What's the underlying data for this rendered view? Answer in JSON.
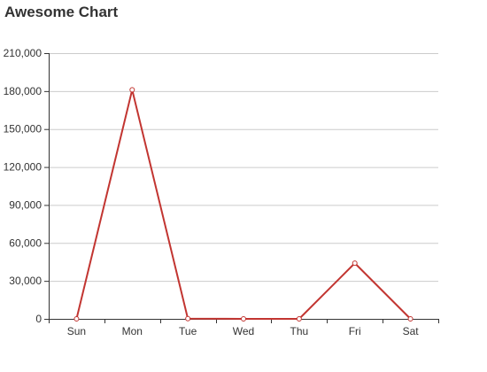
{
  "chart_data": {
    "type": "line",
    "title": "Awesome Chart",
    "categories": [
      "Sun",
      "Mon",
      "Tue",
      "Wed",
      "Thu",
      "Fri",
      "Sat"
    ],
    "series": [
      {
        "values": [
          0,
          181000,
          200,
          0,
          0,
          44000,
          0
        ]
      }
    ],
    "ylim": [
      0,
      210000
    ],
    "yticks": [
      0,
      30000,
      60000,
      90000,
      120000,
      150000,
      180000,
      210000
    ],
    "ytick_labels": [
      "0",
      "30,000",
      "60,000",
      "90,000",
      "120,000",
      "150,000",
      "180,000",
      "210,000"
    ],
    "xlabel": "",
    "ylabel": "",
    "grid": true,
    "legend": "none",
    "colors": {
      "line": "#c23531",
      "grid": "#cccccc",
      "axis": "#333333",
      "text": "#333333"
    }
  }
}
